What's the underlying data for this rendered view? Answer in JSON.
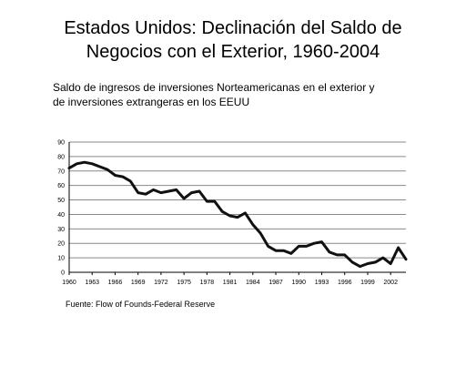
{
  "slide": {
    "title_line1": "Estados Unidos: Declinación del Saldo de",
    "title_line2": "Negocios con el Exterior, 1960-2004",
    "subtitle_line1": "Saldo de ingresos de inversiones Norteamericanas en el exterior y",
    "subtitle_line2": "de inversiones extrangeras en los EEUU",
    "source": "Fuente: Flow of Founds-Federal Reserve"
  },
  "chart_data": {
    "type": "line",
    "title": "",
    "xlabel": "",
    "ylabel": "",
    "ylim": [
      0,
      90
    ],
    "xlim": [
      1960,
      2004
    ],
    "y_ticks": [
      "0",
      "10",
      "20",
      "30",
      "40",
      "50",
      "60",
      "70",
      "80",
      "90"
    ],
    "x_ticks": [
      {
        "x": 1960,
        "label": "1960"
      },
      {
        "x": 1963,
        "label": "1963"
      },
      {
        "x": 1966,
        "label": "1966"
      },
      {
        "x": 1969,
        "label": "1969"
      },
      {
        "x": 1972,
        "label": "1972"
      },
      {
        "x": 1975,
        "label": "1975"
      },
      {
        "x": 1978,
        "label": "1978"
      },
      {
        "x": 1981,
        "label": "1981"
      },
      {
        "x": 1984,
        "label": "1984"
      },
      {
        "x": 1987,
        "label": "1987"
      },
      {
        "x": 1990,
        "label": "1990"
      },
      {
        "x": 1993,
        "label": "1993"
      },
      {
        "x": 1996,
        "label": "1996"
      },
      {
        "x": 1999,
        "label": "1999"
      },
      {
        "x": 2002,
        "label": "2002"
      }
    ],
    "grid": true,
    "color": "#111111",
    "x": [
      1960,
      1961,
      1962,
      1963,
      1964,
      1965,
      1966,
      1967,
      1968,
      1969,
      1970,
      1971,
      1972,
      1973,
      1974,
      1975,
      1976,
      1977,
      1978,
      1979,
      1980,
      1981,
      1982,
      1983,
      1984,
      1985,
      1986,
      1987,
      1988,
      1989,
      1990,
      1991,
      1992,
      1993,
      1994,
      1995,
      1996,
      1997,
      1998,
      1999,
      2000,
      2001,
      2002,
      2003,
      2004
    ],
    "values": [
      72,
      75,
      76,
      75,
      73,
      71,
      67,
      66,
      63,
      55,
      54,
      57,
      55,
      56,
      57,
      51,
      55,
      56,
      49,
      49,
      42,
      39,
      38,
      41,
      33,
      27,
      18,
      15,
      15,
      13,
      18,
      18,
      20,
      21,
      14,
      12,
      12,
      7,
      4,
      6,
      7,
      10,
      6,
      17,
      9
    ]
  }
}
